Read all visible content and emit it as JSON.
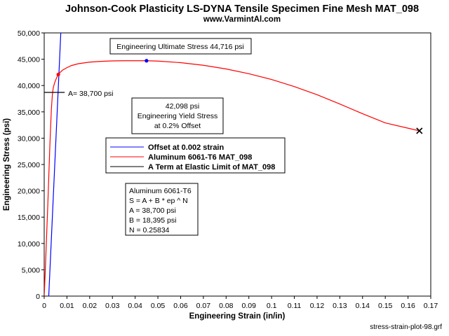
{
  "chart_data": {
    "type": "line",
    "title": "Johnson-Cook Plasticity LS-DYNA Tensile Specimen Fine Mesh MAT_098",
    "subtitle": "www.VarmintAl.com",
    "xlabel": "Engineering Strain (in/in)",
    "ylabel": "Engineering Stress (psi)",
    "xlim": [
      0,
      0.17
    ],
    "ylim": [
      0,
      50000
    ],
    "x_ticks": [
      0,
      0.01,
      0.02,
      0.03,
      0.04,
      0.05,
      0.06,
      0.07,
      0.08,
      0.09,
      0.1,
      0.11,
      0.12,
      0.13,
      0.14,
      0.15,
      0.16,
      0.17
    ],
    "x_tick_labels": [
      "0",
      "0.01",
      "0.02",
      "0.03",
      "0.04",
      "0.05",
      "0.06",
      "0.07",
      "0.08",
      "0.09",
      "0.1",
      "0.11",
      "0.12",
      "0.13",
      "0.14",
      "0.15",
      "0.16",
      "0.17"
    ],
    "y_ticks": [
      0,
      5000,
      10000,
      15000,
      20000,
      25000,
      30000,
      35000,
      40000,
      45000,
      50000
    ],
    "y_tick_labels": [
      "0",
      "5,000",
      "10,000",
      "15,000",
      "20,000",
      "25,000",
      "30,000",
      "35,000",
      "40,000",
      "45,000",
      "50,000"
    ],
    "grid": false,
    "legend_placement": "center-left",
    "series": [
      {
        "name": "Offset at 0.002 strain",
        "color": "#0000ff",
        "x": [
          0.002,
          0.0073
        ],
        "y": [
          0,
          50000
        ]
      },
      {
        "name": "Aluminum 6061-T6 MAT_098",
        "color": "#ff0000",
        "x": [
          0.0,
          0.0004,
          0.0008,
          0.0012,
          0.0016,
          0.002,
          0.0024,
          0.0028,
          0.0032,
          0.0036,
          0.004,
          0.0045,
          0.005,
          0.0055,
          0.006,
          0.007,
          0.008,
          0.01,
          0.012,
          0.015,
          0.02,
          0.025,
          0.03,
          0.035,
          0.04,
          0.045,
          0.05,
          0.06,
          0.07,
          0.08,
          0.09,
          0.1,
          0.11,
          0.12,
          0.13,
          0.14,
          0.15,
          0.16,
          0.165
        ],
        "y": [
          0,
          4000,
          8500,
          13000,
          17500,
          22500,
          27500,
          32000,
          35800,
          38300,
          39600,
          40400,
          41000,
          41500,
          42000,
          42500,
          42900,
          43400,
          43800,
          44150,
          44450,
          44600,
          44680,
          44710,
          44716,
          44710,
          44650,
          44350,
          43850,
          43150,
          42250,
          41150,
          39800,
          38250,
          36500,
          34650,
          32900,
          31900,
          31400
        ]
      },
      {
        "name": "A Term at Elastic Limit of MAT_098",
        "color": "#000000",
        "x": [
          0.0,
          0.009
        ],
        "y": [
          38700,
          38700
        ]
      }
    ],
    "points": [
      {
        "name": "ultimate",
        "x": 0.045,
        "y": 44716,
        "color": "#0000ff",
        "marker": "dot"
      },
      {
        "name": "yield",
        "x": 0.0062,
        "y": 42098,
        "color": "#ff0000",
        "marker": "dot"
      },
      {
        "name": "end",
        "x": 0.165,
        "y": 31400,
        "color": "#000000",
        "marker": "x"
      }
    ],
    "annotations": {
      "ultimate": "Engineering Ultimate Stress 44,716 psi",
      "a_term": "A= 38,700 psi",
      "yield_lines": [
        "42,098 psi",
        "Engineering Yield Stress",
        "at 0.2% Offset"
      ],
      "material_lines": [
        "Aluminum 6061-T6",
        "S = A + B * ep ^ N",
        "A = 38,700 psi",
        "B = 18,395 psi",
        "N = 0.25834"
      ]
    },
    "footer": "stress-strain-plot-98.grf"
  }
}
